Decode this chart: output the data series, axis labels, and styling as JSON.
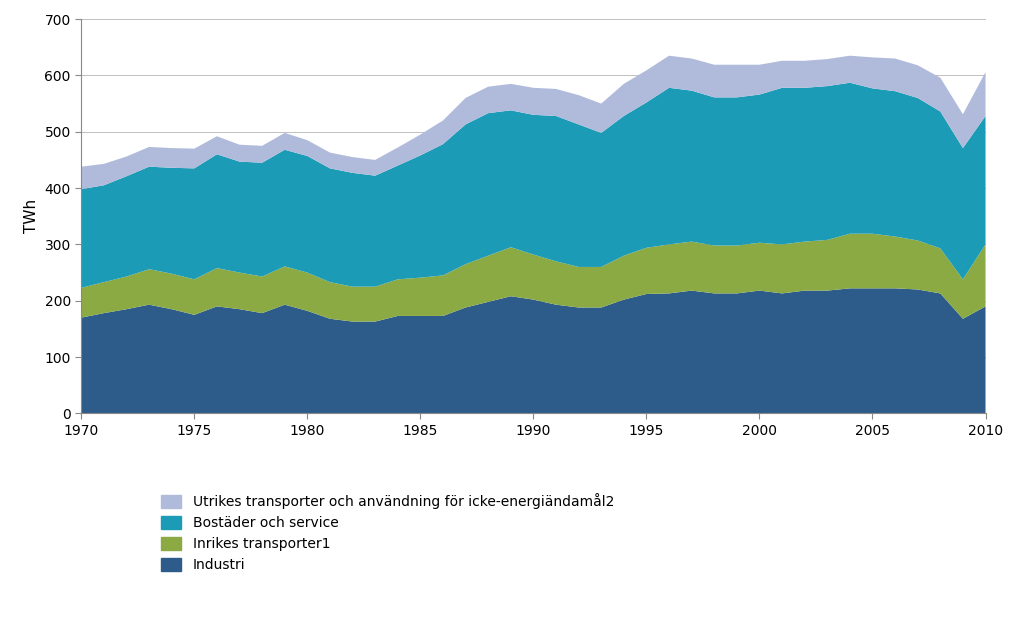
{
  "years": [
    1970,
    1971,
    1972,
    1973,
    1974,
    1975,
    1976,
    1977,
    1978,
    1979,
    1980,
    1981,
    1982,
    1983,
    1984,
    1985,
    1986,
    1987,
    1988,
    1989,
    1990,
    1991,
    1992,
    1993,
    1994,
    1995,
    1996,
    1997,
    1998,
    1999,
    2000,
    2001,
    2002,
    2003,
    2004,
    2005,
    2006,
    2007,
    2008,
    2009,
    2010
  ],
  "industri": [
    170,
    178,
    185,
    193,
    185,
    175,
    190,
    185,
    178,
    193,
    182,
    168,
    163,
    163,
    173,
    173,
    173,
    188,
    198,
    208,
    202,
    193,
    188,
    188,
    202,
    212,
    213,
    218,
    213,
    213,
    218,
    213,
    218,
    218,
    222,
    222,
    222,
    220,
    213,
    168,
    190
  ],
  "inrikes_transporter": [
    53,
    55,
    58,
    63,
    63,
    63,
    68,
    65,
    65,
    68,
    68,
    65,
    62,
    62,
    65,
    68,
    72,
    77,
    82,
    87,
    80,
    77,
    72,
    72,
    78,
    82,
    87,
    87,
    85,
    85,
    85,
    87,
    87,
    90,
    97,
    97,
    92,
    87,
    80,
    70,
    110
  ],
  "bostader_service": [
    175,
    172,
    178,
    182,
    188,
    197,
    202,
    197,
    202,
    207,
    207,
    202,
    202,
    197,
    202,
    217,
    233,
    248,
    253,
    243,
    248,
    258,
    253,
    238,
    248,
    258,
    278,
    268,
    263,
    263,
    263,
    278,
    273,
    273,
    268,
    258,
    258,
    253,
    243,
    233,
    228
  ],
  "utrikes": [
    40,
    38,
    35,
    35,
    35,
    35,
    32,
    30,
    30,
    30,
    28,
    28,
    28,
    28,
    32,
    37,
    42,
    47,
    47,
    47,
    48,
    48,
    52,
    52,
    57,
    57,
    57,
    57,
    58,
    58,
    53,
    48,
    48,
    48,
    48,
    55,
    58,
    58,
    60,
    60,
    78
  ],
  "colors": {
    "industri": "#2E5C8A",
    "inrikes_transporter": "#8BAA44",
    "bostader_service": "#1B9BB5",
    "utrikes": "#B0BBDB"
  },
  "legend_labels": [
    "Utrikes transporter och användning för icke-energiändamål2",
    "Bostäder och service",
    "Inrikes transporter1",
    "Industri"
  ],
  "ylabel": "TWh",
  "ylim": [
    0,
    700
  ],
  "yticks": [
    0,
    100,
    200,
    300,
    400,
    500,
    600,
    700
  ],
  "xlim": [
    1970,
    2010
  ],
  "xticks": [
    1970,
    1975,
    1980,
    1985,
    1990,
    1995,
    2000,
    2005,
    2010
  ]
}
